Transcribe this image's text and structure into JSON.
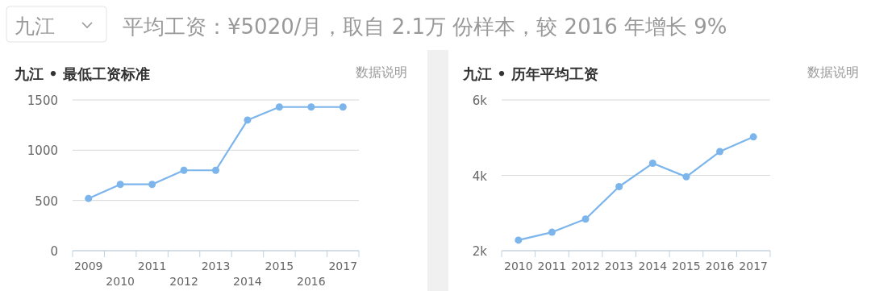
{
  "chart_data": [
    {
      "type": "line",
      "title": "九江 • 最低工资标准",
      "annotations": [
        "九江",
        "平均工资：¥5020/月，取自 2.1万 份样本，较 2016 年增长 9%",
        "数据说明"
      ],
      "categories": [
        "2009",
        "2010",
        "2011",
        "2012",
        "2013",
        "2014",
        "2015",
        "2016",
        "2017"
      ],
      "series": [
        {
          "color": "#7cb5ec",
          "values": [
            520,
            660,
            660,
            800,
            800,
            1300,
            1430,
            1430,
            1430
          ]
        }
      ],
      "ylim": [
        0,
        1500
      ],
      "yticks": [
        0,
        500,
        1000,
        1500
      ],
      "grid": "y",
      "marker": "circle",
      "line_style": "solid"
    },
    {
      "type": "line",
      "title": "九江 • 历年平均工资",
      "annotations": [
        "数据说明"
      ],
      "categories": [
        "2010",
        "2011",
        "2012",
        "2013",
        "2014",
        "2015",
        "2016",
        "2017"
      ],
      "series": [
        {
          "color": "#7cb5ec",
          "values": [
            2280,
            2490,
            2840,
            3700,
            4320,
            3960,
            4630,
            5020
          ]
        }
      ],
      "ylim": [
        2000,
        6000
      ],
      "yticks": [
        {
          "value": 2000,
          "label": "2k"
        },
        {
          "value": 4000,
          "label": "4k"
        },
        {
          "value": 6000,
          "label": "6k"
        }
      ],
      "grid": "y",
      "marker": "circle",
      "line_style": "solid"
    }
  ]
}
